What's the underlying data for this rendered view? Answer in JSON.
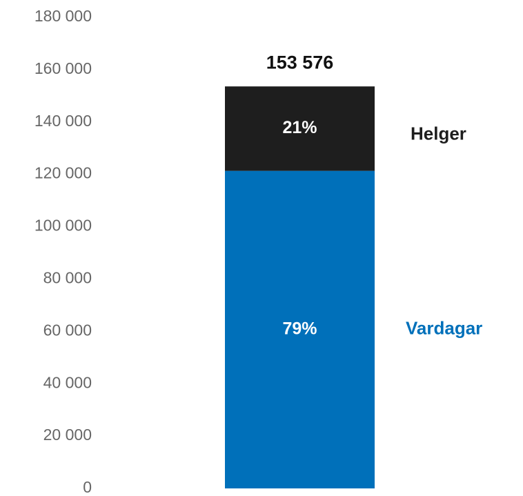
{
  "chart_data": {
    "type": "stacked_bar",
    "categories": [
      null
    ],
    "series": [
      {
        "name": "Vardagar",
        "color": "#0070ba",
        "values": [
          121325
        ],
        "value_labels": [
          "79%"
        ]
      },
      {
        "name": "Helger",
        "color": "#1e1e1e",
        "values": [
          32251
        ],
        "value_labels": [
          "21%"
        ]
      }
    ],
    "total_labels": [
      {
        "value": 153576,
        "label": "153 576"
      }
    ],
    "ylim": [
      0,
      180000
    ],
    "yticks": [
      0,
      {
        "value": 20000,
        "label": "20 000"
      },
      {
        "value": 40000,
        "label": "40 000"
      },
      {
        "value": 60000,
        "label": "60 000"
      },
      {
        "value": 80000,
        "label": "80 000"
      },
      {
        "value": 100000,
        "label": "100 000"
      },
      {
        "value": 120000,
        "label": "120 000"
      },
      {
        "value": 140000,
        "label": "140 000"
      },
      {
        "value": 160000,
        "label": "160 000"
      },
      {
        "value": 180000,
        "label": "180 000"
      }
    ],
    "grid": false
  }
}
